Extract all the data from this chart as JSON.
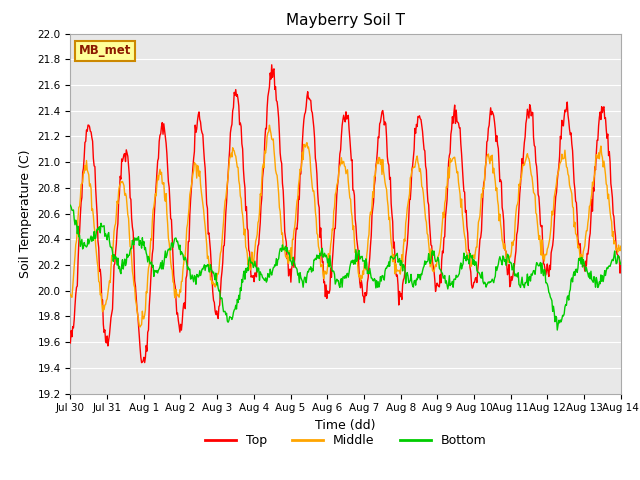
{
  "title": "Mayberry Soil T",
  "xlabel": "Time (dd)",
  "ylabel": "Soil Temperature (C)",
  "ylim": [
    19.2,
    22.0
  ],
  "yticks": [
    19.2,
    19.4,
    19.6,
    19.8,
    20.0,
    20.2,
    20.4,
    20.6,
    20.8,
    21.0,
    21.2,
    21.4,
    21.6,
    21.8,
    22.0
  ],
  "x_tick_labels": [
    "Jul 30",
    "Jul 31",
    "Aug 1",
    "Aug 2",
    "Aug 3",
    "Aug 4",
    "Aug 5",
    "Aug 6",
    "Aug 7",
    "Aug 8",
    "Aug 9",
    "Aug 10",
    "Aug 11",
    "Aug 12",
    "Aug 13",
    "Aug 14"
  ],
  "colors": {
    "top": "#FF0000",
    "middle": "#FFA500",
    "bottom": "#00CC00",
    "background": "#E8E8E8",
    "grid": "#FFFFFF",
    "legend_box_bg": "#FFFF99",
    "legend_box_border": "#CC8800"
  },
  "legend_label": "MB_met",
  "line_width": 1.0,
  "n_points": 720,
  "duration_days": 15.0
}
